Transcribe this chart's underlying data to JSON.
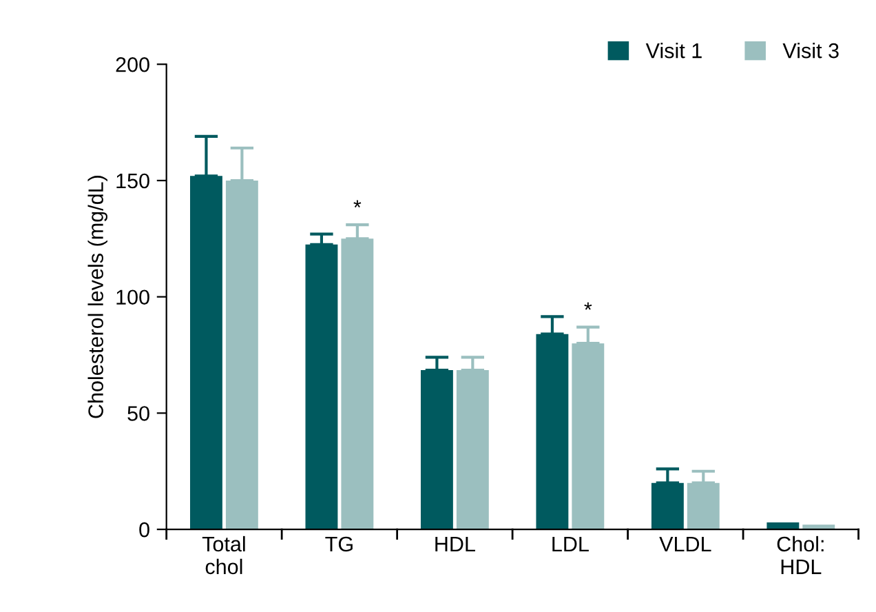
{
  "chart_data": {
    "type": "bar",
    "ylabel": "Cholesterol levels (mg/dL)",
    "categories": [
      "Total\nchol",
      "TG",
      "HDL",
      "LDL",
      "VLDL",
      "Chol:\nHDL"
    ],
    "series": [
      {
        "name": "Visit 1",
        "color": "#005a5f",
        "values": [
          152,
          122.5,
          68.5,
          84,
          20,
          3
        ],
        "errors": [
          [
            152,
            169
          ],
          [
            122.5,
            127
          ],
          [
            68.5,
            74
          ],
          [
            84,
            91.5
          ],
          [
            20,
            26
          ],
          null
        ]
      },
      {
        "name": "Visit 3",
        "color": "#9bbfbf",
        "values": [
          150,
          125,
          68.5,
          80,
          20,
          2
        ],
        "errors": [
          [
            150,
            164
          ],
          [
            125,
            131
          ],
          [
            68.5,
            74
          ],
          [
            80,
            87
          ],
          [
            20,
            25
          ],
          null
        ]
      }
    ],
    "annotations": [
      {
        "text": "*",
        "x": "TG",
        "y": 131
      },
      {
        "text": "*",
        "x": "LDL",
        "y": 87
      }
    ],
    "ylim": [
      0,
      200
    ],
    "yticks": [
      0,
      50,
      100,
      150,
      200
    ],
    "grid": false,
    "legend": "top right"
  }
}
